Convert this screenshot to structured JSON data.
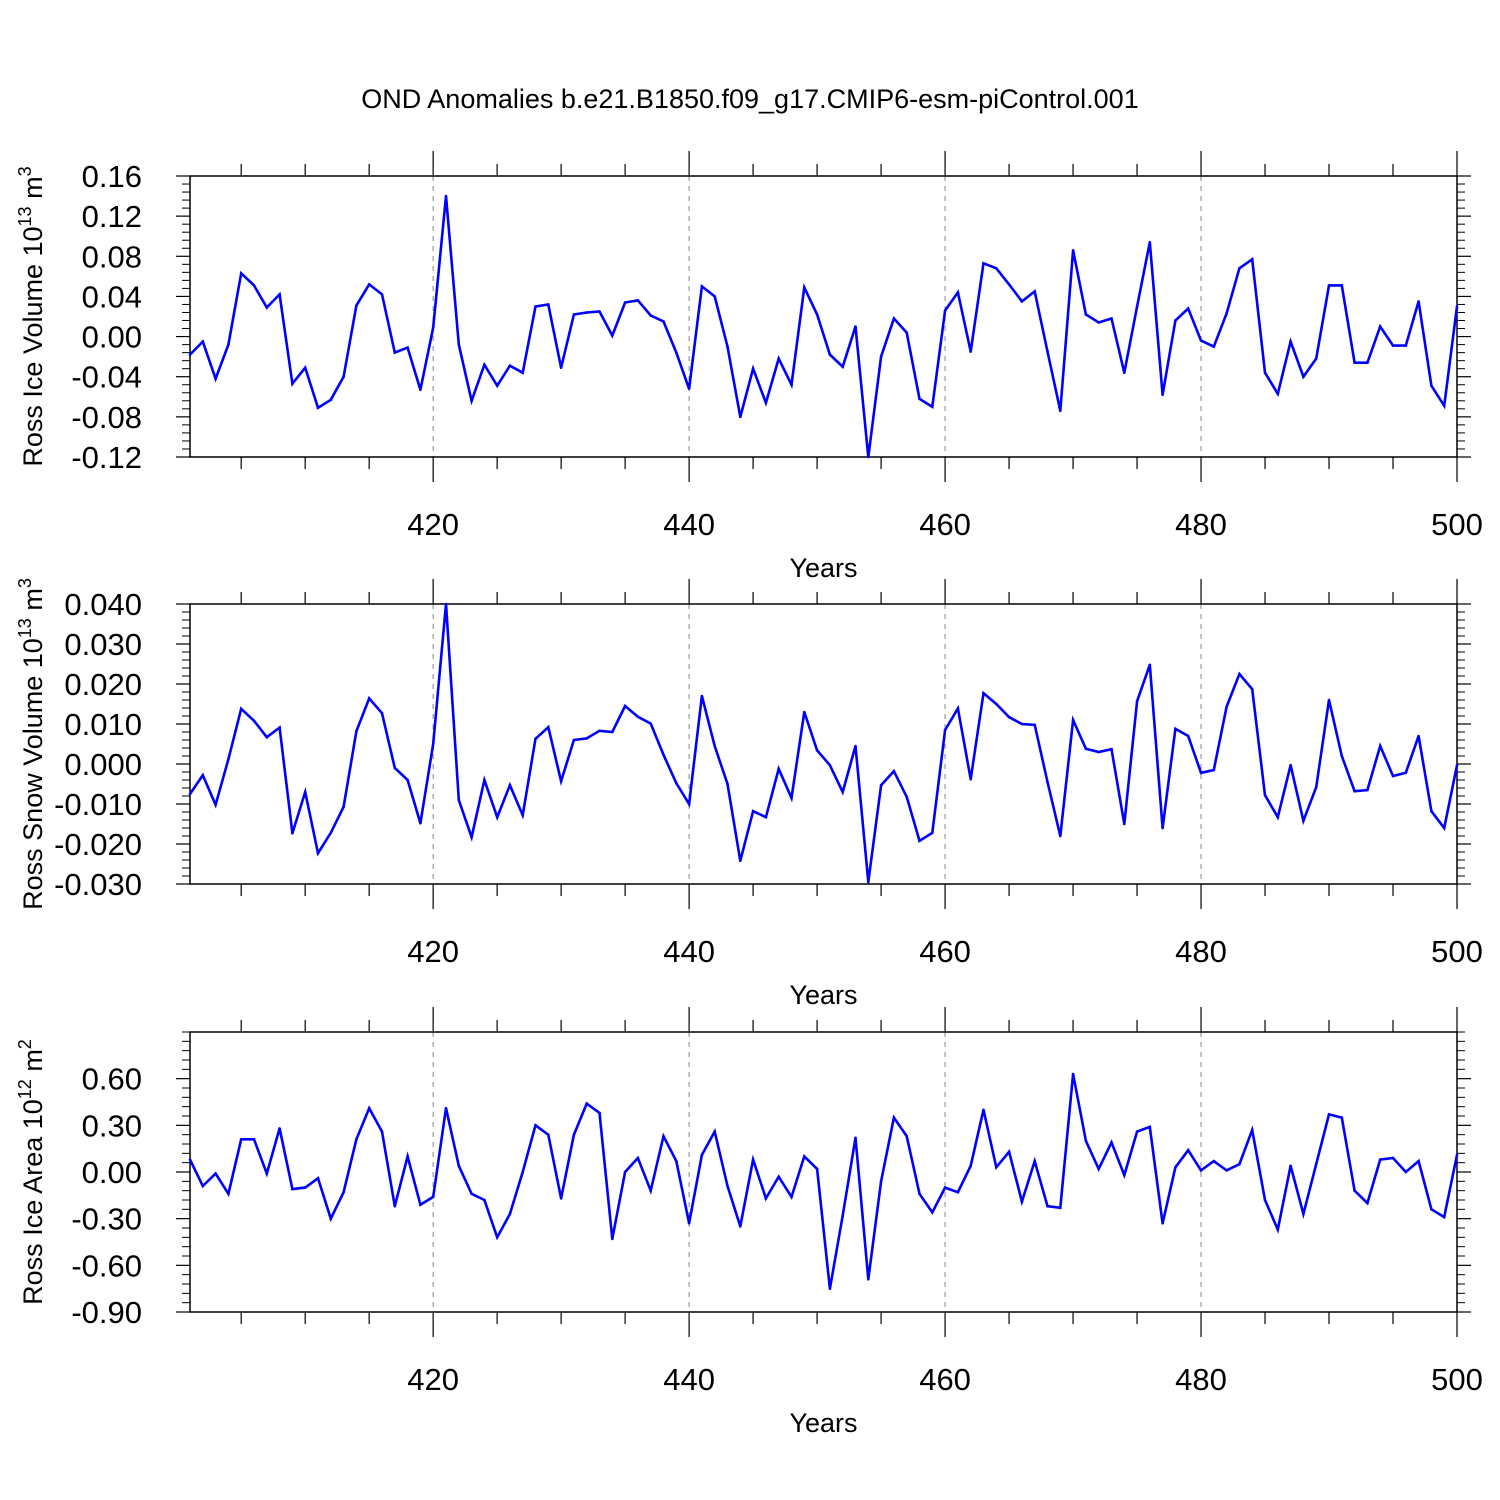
{
  "figure": {
    "title": "OND Anomalies b.e21.B1850.f09_g17.CMIP6-esm-piControl.001"
  },
  "colors": {
    "series": "#0000ff",
    "axis": "#000000",
    "grid": "#999999"
  },
  "chart_data": [
    {
      "type": "line",
      "ylabel": "Ross Ice Volume 10^13 m^3",
      "xlabel": "Years",
      "xlim": [
        401,
        500
      ],
      "ylim": [
        -0.12,
        0.16
      ],
      "yticks": [
        -0.12,
        -0.08,
        -0.04,
        0.0,
        0.04,
        0.08,
        0.12,
        0.16
      ],
      "ytick_labels": [
        "-0.12",
        "-0.08",
        "-0.04",
        "0.00",
        "0.04",
        "0.08",
        "0.12",
        "0.16"
      ],
      "xticks": [
        420,
        440,
        460,
        480,
        500
      ],
      "grid": "vertical dashed at major x ticks",
      "series": [
        {
          "color": "#0000ff",
          "x_start": 401,
          "values": [
            -0.018,
            -0.005,
            -0.042,
            -0.008,
            0.063,
            0.051,
            0.029,
            0.042,
            -0.047,
            -0.031,
            -0.071,
            -0.063,
            -0.04,
            0.031,
            0.052,
            0.042,
            -0.016,
            -0.011,
            -0.053,
            0.009,
            0.14,
            -0.008,
            -0.064,
            -0.028,
            -0.049,
            -0.029,
            -0.036,
            0.03,
            0.032,
            -0.031,
            0.022,
            0.024,
            0.025,
            0.001,
            0.034,
            0.036,
            0.021,
            0.015,
            -0.016,
            -0.052,
            0.05,
            0.04,
            -0.01,
            -0.08,
            -0.032,
            -0.066,
            -0.022,
            -0.048,
            0.049,
            0.022,
            -0.018,
            -0.03,
            0.01,
            -0.12,
            -0.02,
            0.018,
            0.004,
            -0.062,
            -0.07,
            0.026,
            0.044,
            -0.015,
            0.073,
            0.068,
            0.052,
            0.035,
            0.045,
            -0.015,
            -0.074,
            0.086,
            0.022,
            0.014,
            0.018,
            -0.036,
            0.03,
            0.094,
            -0.058,
            0.016,
            0.028,
            -0.004,
            -0.01,
            0.023,
            0.068,
            0.077,
            -0.036,
            -0.057,
            -0.005,
            -0.04,
            -0.022,
            0.051,
            0.051,
            -0.026,
            -0.026,
            0.01,
            -0.009,
            -0.009,
            0.035,
            -0.049,
            -0.069,
            0.03
          ]
        }
      ]
    },
    {
      "type": "line",
      "ylabel": "Ross Snow Volume 10^13 m^3",
      "xlabel": "Years",
      "xlim": [
        401,
        500
      ],
      "ylim": [
        -0.03,
        0.04
      ],
      "yticks": [
        -0.03,
        -0.02,
        -0.01,
        0.0,
        0.01,
        0.02,
        0.03,
        0.04
      ],
      "ytick_labels": [
        "-0.030",
        "-0.020",
        "-0.010",
        "0.000",
        "0.010",
        "0.020",
        "0.030",
        "0.040"
      ],
      "xticks": [
        420,
        440,
        460,
        480,
        500
      ],
      "grid": "vertical dashed at major x ticks",
      "series": [
        {
          "color": "#0000ff",
          "x_start": 401,
          "values": [
            -0.0075,
            -0.0028,
            -0.0102,
            0.0012,
            0.0138,
            0.0108,
            0.0067,
            0.0091,
            -0.0173,
            -0.007,
            -0.0223,
            -0.0172,
            -0.0107,
            0.0082,
            0.0164,
            0.0127,
            -0.001,
            -0.004,
            -0.0148,
            0.005,
            0.04,
            -0.009,
            -0.0183,
            -0.004,
            -0.0133,
            -0.0053,
            -0.0128,
            0.0063,
            0.0092,
            -0.0043,
            0.006,
            0.0064,
            0.0083,
            0.008,
            0.0145,
            0.0118,
            0.0101,
            0.0023,
            -0.0048,
            -0.01,
            0.017,
            0.0045,
            -0.005,
            -0.0242,
            -0.0118,
            -0.0133,
            -0.0012,
            -0.0085,
            0.013,
            0.0034,
            -0.0003,
            -0.007,
            0.0045,
            -0.0295,
            -0.0053,
            -0.0018,
            -0.0082,
            -0.0192,
            -0.0172,
            0.0085,
            0.0139,
            -0.0038,
            0.0177,
            0.015,
            0.0117,
            0.01,
            0.0098,
            -0.0045,
            -0.018,
            0.011,
            0.0038,
            0.003,
            0.0037,
            -0.015,
            0.0157,
            0.0248,
            -0.016,
            0.0088,
            0.007,
            -0.0022,
            -0.0015,
            0.0143,
            0.0225,
            0.0187,
            -0.0078,
            -0.0133,
            -0.0003,
            -0.0142,
            -0.0058,
            0.016,
            0.002,
            -0.0068,
            -0.0065,
            0.0045,
            -0.003,
            -0.0022,
            0.007,
            -0.0118,
            -0.016,
            -0.0003
          ]
        }
      ]
    },
    {
      "type": "line",
      "ylabel": "Ross Ice Area 10^12 m^2",
      "xlabel": "Years",
      "xlim": [
        401,
        500
      ],
      "ylim": [
        -0.9,
        0.9
      ],
      "yticks": [
        -0.9,
        -0.6,
        -0.3,
        0.0,
        0.3,
        0.6
      ],
      "ytick_labels": [
        "-0.90",
        "-0.60",
        "-0.30",
        "0.00",
        "0.30",
        "0.60"
      ],
      "xticks": [
        420,
        440,
        460,
        480,
        500
      ],
      "grid": "vertical dashed at major x ticks",
      "series": [
        {
          "color": "#0000ff",
          "x_start": 401,
          "values": [
            0.08,
            -0.09,
            -0.01,
            -0.14,
            0.21,
            0.21,
            -0.01,
            0.28,
            -0.11,
            -0.1,
            -0.04,
            -0.3,
            -0.13,
            0.21,
            0.41,
            0.26,
            -0.22,
            0.1,
            -0.21,
            -0.16,
            0.41,
            0.04,
            -0.14,
            -0.18,
            -0.42,
            -0.27,
            0.0,
            0.3,
            0.24,
            -0.17,
            0.24,
            0.44,
            0.38,
            -0.43,
            0.0,
            0.09,
            -0.12,
            0.23,
            0.07,
            -0.33,
            0.11,
            0.26,
            -0.09,
            -0.35,
            0.08,
            -0.17,
            -0.03,
            -0.16,
            0.1,
            0.02,
            -0.75,
            -0.28,
            0.22,
            -0.69,
            -0.06,
            0.35,
            0.23,
            -0.14,
            -0.26,
            -0.1,
            -0.13,
            0.04,
            0.4,
            0.03,
            0.13,
            -0.19,
            0.07,
            -0.22,
            -0.23,
            0.63,
            0.2,
            0.02,
            0.19,
            -0.02,
            0.26,
            0.29,
            -0.33,
            0.03,
            0.14,
            0.01,
            0.07,
            0.01,
            0.05,
            0.27,
            -0.18,
            -0.37,
            0.04,
            -0.27,
            0.05,
            0.37,
            0.35,
            -0.12,
            -0.2,
            0.08,
            0.09,
            0.0,
            0.07,
            -0.24,
            -0.29,
            0.11
          ]
        }
      ]
    }
  ]
}
